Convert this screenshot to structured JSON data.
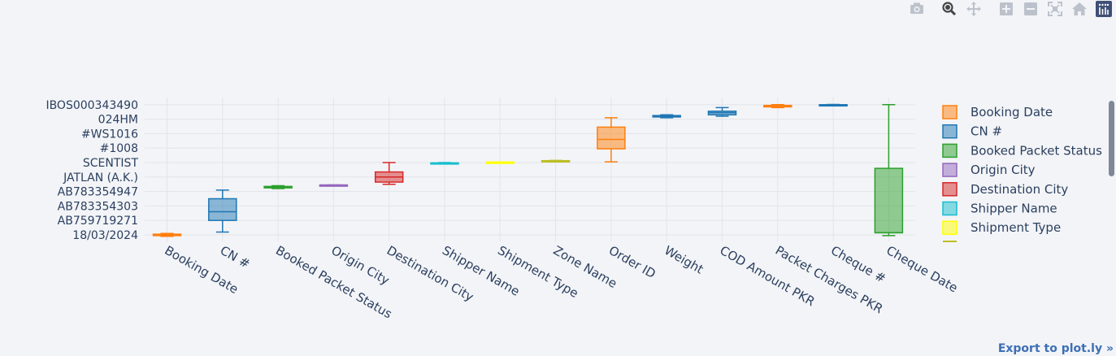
{
  "modebar": {
    "buttons": [
      {
        "name": "camera-icon",
        "title": "Download plot as a png"
      },
      {
        "name": "zoom-icon",
        "title": "Zoom"
      },
      {
        "name": "pan-icon",
        "title": "Pan"
      },
      {
        "name": "zoom-in-icon",
        "title": "Zoom in"
      },
      {
        "name": "zoom-out-icon",
        "title": "Zoom out"
      },
      {
        "name": "autoscale-icon",
        "title": "Autoscale"
      },
      {
        "name": "reset-axes-icon",
        "title": "Reset axes"
      },
      {
        "name": "plotly-logo-icon",
        "title": "Produced with Plotly"
      }
    ]
  },
  "export_label": "Export to plot.ly »",
  "chart_data": {
    "type": "box",
    "title": "",
    "xlabel": "",
    "ylabel": "",
    "y_ticks": [
      "18/03/2024",
      "AB759719271",
      "AB783354303",
      "AB783354947",
      "JATLAN (A.K.)",
      "SCENTIST",
      "#1008",
      "#WS1016",
      "024HM",
      "IBOS000343490"
    ],
    "categories": [
      "Booking Date",
      "CN #",
      "Booked Packet Status",
      "Origin City",
      "Destination City",
      "Shipper Name",
      "Shipment Type",
      "Zone Name",
      "Order ID",
      "Weight",
      "COD Amount PKR",
      "Packet Charges PKR",
      "Cheque #",
      "Cheque Date"
    ],
    "legend_position": "right",
    "grid": true,
    "series": [
      {
        "name": "Booking Date",
        "color": "#ff7f0e",
        "box": {
          "min": -0.1,
          "q1": -0.05,
          "median": 0.0,
          "q3": 0.05,
          "max": 0.1
        }
      },
      {
        "name": "CN #",
        "color": "#1f77b4",
        "box": {
          "min": 0.2,
          "q1": 1.0,
          "median": 1.6,
          "q3": 2.5,
          "max": 3.1
        }
      },
      {
        "name": "Booked Packet Status",
        "color": "#2ca02c",
        "box": {
          "min": 3.2,
          "q1": 3.25,
          "median": 3.3,
          "q3": 3.35,
          "max": 3.4
        }
      },
      {
        "name": "Origin City",
        "color": "#9467bd",
        "box": {
          "min": 3.45,
          "q1": 3.45,
          "median": 3.45,
          "q3": 3.45,
          "max": 3.45
        }
      },
      {
        "name": "Destination City",
        "color": "#d62728",
        "box": {
          "min": 3.5,
          "q1": 3.65,
          "median": 4.0,
          "q3": 4.35,
          "max": 5.0
        }
      },
      {
        "name": "Shipper Name",
        "color": "#17becf",
        "box": {
          "min": 4.9,
          "q1": 4.92,
          "median": 4.95,
          "q3": 4.98,
          "max": 5.0
        }
      },
      {
        "name": "Shipment Type",
        "color": "#ffff00",
        "box": {
          "min": 5.03,
          "q1": 5.03,
          "median": 5.03,
          "q3": 5.03,
          "max": 5.03
        }
      },
      {
        "name": "Zone Name",
        "color": "#bcbd22",
        "box": {
          "min": 5.05,
          "q1": 5.07,
          "median": 5.1,
          "q3": 5.13,
          "max": 5.15
        }
      },
      {
        "name": "Order ID",
        "color": "#ff7f0e",
        "box": {
          "min": 5.05,
          "q1": 5.95,
          "median": 6.6,
          "q3": 7.45,
          "max": 8.1
        }
      },
      {
        "name": "Weight",
        "color": "#1f77b4",
        "box": {
          "min": 8.1,
          "q1": 8.15,
          "median": 8.2,
          "q3": 8.25,
          "max": 8.3
        }
      },
      {
        "name": "COD Amount PKR",
        "color": "#1f77b4",
        "box": {
          "min": 8.2,
          "q1": 8.3,
          "median": 8.45,
          "q3": 8.55,
          "max": 8.8
        }
      },
      {
        "name": "Packet Charges PKR",
        "color": "#ff7f0e",
        "box": {
          "min": 8.8,
          "q1": 8.85,
          "median": 8.9,
          "q3": 8.95,
          "max": 9.0
        }
      },
      {
        "name": "Cheque #",
        "color": "#1f77b4",
        "box": {
          "min": 8.93,
          "q1": 8.95,
          "median": 8.97,
          "q3": 9.0,
          "max": 9.02
        }
      },
      {
        "name": "Cheque Date",
        "color": "#2ca02c",
        "box": {
          "min": -0.05,
          "q1": 0.15,
          "median": 0.15,
          "q3": 4.6,
          "max": 9.0
        }
      }
    ],
    "legend": [
      "Booking Date",
      "CN #",
      "Booked Packet Status",
      "Origin City",
      "Destination City",
      "Shipper Name",
      "Shipment Type"
    ]
  }
}
